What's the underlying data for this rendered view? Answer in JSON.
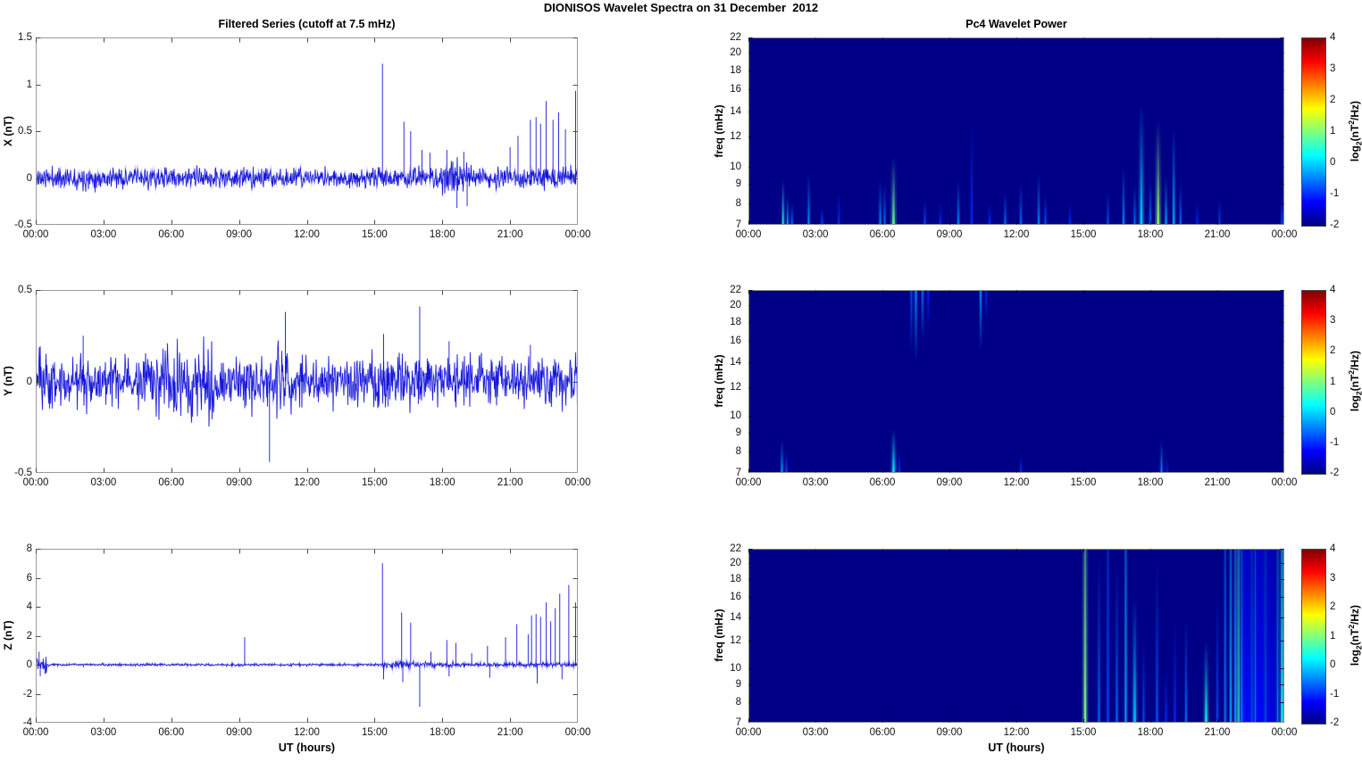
{
  "page": {
    "title": "DIONISOS Wavelet Spectra on 31 December  2012"
  },
  "chart_data": {
    "type": "multi-panel figure: 3 line time-series (left) + 3 wavelet power heatmap spectrograms with colorbars (right)",
    "date_shown": "31 December 2012",
    "x": {
      "label": "UT (hours)",
      "hours": [
        0,
        3,
        6,
        9,
        12,
        15,
        18,
        21,
        24
      ],
      "tick_labels": [
        "00:00",
        "03:00",
        "06:00",
        "09:00",
        "12:00",
        "15:00",
        "18:00",
        "21:00",
        "00:00"
      ],
      "xlim_hours": [
        0,
        24
      ]
    },
    "filtered": {
      "title": "Filtered Series (cutoff at 7.5 mHz)",
      "line_color": "#0b0bd8",
      "panels": [
        {
          "component": "X",
          "ylabel": "X (nT)",
          "ylim": [
            -0.5,
            1.5
          ],
          "yticks": [
            1.5,
            1,
            0.5,
            0,
            -0.5
          ],
          "ytick_labels": [
            "1.5",
            "1",
            "0.5",
            "0",
            "-0.5"
          ],
          "seed": 11,
          "noise_std": 0.052,
          "noise_bursts": [
            [
              17.9,
              19.5,
              0.075
            ]
          ],
          "spikes": [
            [
              15.35,
              1.22
            ],
            [
              16.3,
              0.6
            ],
            [
              16.6,
              0.5
            ],
            [
              17.1,
              0.3
            ],
            [
              17.45,
              0.27
            ],
            [
              18.2,
              0.3
            ],
            [
              18.65,
              -0.32
            ],
            [
              18.95,
              0.28
            ],
            [
              19.1,
              -0.3
            ],
            [
              21.0,
              0.33
            ],
            [
              21.35,
              0.45
            ],
            [
              21.9,
              0.62
            ],
            [
              22.15,
              0.65
            ],
            [
              22.35,
              0.58
            ],
            [
              22.6,
              0.82
            ],
            [
              22.9,
              0.62
            ],
            [
              23.15,
              0.7
            ],
            [
              23.45,
              0.52
            ],
            [
              23.9,
              0.93
            ]
          ]
        },
        {
          "component": "Y",
          "ylabel": "Y (nT)",
          "ylim": [
            -0.5,
            0.5
          ],
          "yticks": [
            0.5,
            0,
            -0.5
          ],
          "ytick_labels": [
            "0.5",
            "0",
            "-0.5"
          ],
          "seed": 23,
          "noise_std": 0.065,
          "noise_bursts": [
            [
              0.1,
              0.9,
              0.085
            ],
            [
              5.3,
              7.9,
              0.1
            ],
            [
              10.6,
              11.5,
              0.09
            ]
          ],
          "spikes": [
            [
              2.1,
              0.25
            ],
            [
              10.35,
              -0.44
            ],
            [
              11.05,
              0.38
            ],
            [
              15.4,
              0.26
            ],
            [
              17.0,
              0.41
            ],
            [
              18.3,
              0.22
            ],
            [
              21.9,
              0.2
            ]
          ]
        },
        {
          "component": "Z",
          "ylabel": "Z (nT)",
          "ylim": [
            -4,
            8
          ],
          "yticks": [
            8,
            6,
            4,
            2,
            0,
            -2,
            -4
          ],
          "ytick_labels": [
            "8",
            "6",
            "4",
            "2",
            "0",
            "-2",
            "-4"
          ],
          "seed": 37,
          "noise_std": 0.04,
          "noise_bursts": [
            [
              0,
              0.5,
              0.28
            ],
            [
              15.3,
              18.6,
              0.1
            ],
            [
              18.6,
              21,
              0.06
            ],
            [
              21,
              24,
              0.08
            ]
          ],
          "spikes": [
            [
              0.15,
              0.9
            ],
            [
              0.2,
              -0.8
            ],
            [
              9.25,
              1.9
            ],
            [
              15.35,
              7.0
            ],
            [
              15.4,
              -1.0
            ],
            [
              16.2,
              3.6
            ],
            [
              16.25,
              -1.2
            ],
            [
              16.6,
              2.9
            ],
            [
              17.0,
              -2.9
            ],
            [
              17.5,
              0.9
            ],
            [
              18.2,
              1.7
            ],
            [
              18.3,
              -0.8
            ],
            [
              18.6,
              1.5
            ],
            [
              19.3,
              0.8
            ],
            [
              20.0,
              1.3
            ],
            [
              20.1,
              -0.9
            ],
            [
              20.8,
              1.9
            ],
            [
              21.3,
              2.8
            ],
            [
              21.8,
              2.1
            ],
            [
              21.95,
              3.4
            ],
            [
              22.15,
              3.5
            ],
            [
              22.2,
              -1.3
            ],
            [
              22.35,
              3.3
            ],
            [
              22.6,
              4.3
            ],
            [
              22.8,
              3.0
            ],
            [
              23.0,
              3.9
            ],
            [
              23.2,
              4.9
            ],
            [
              23.3,
              -1.0
            ],
            [
              23.6,
              5.5
            ],
            [
              23.9,
              4.3
            ]
          ]
        }
      ]
    },
    "wavelet": {
      "title": "Pc4 Wavelet Power",
      "ylabel": "freq (mHz)",
      "flim_mHz": [
        7,
        22
      ],
      "yticks": [
        22,
        20,
        18,
        16,
        14,
        12,
        10,
        9,
        8,
        7
      ],
      "scale": "log",
      "background": "#000087",
      "colorbar": {
        "lim": [
          -2,
          4
        ],
        "ticks": [
          4,
          3,
          2,
          1,
          0,
          -1,
          -2
        ],
        "colormap": "jet",
        "label_parts": {
          "p1": "log",
          "sub": "2",
          "p2": "(nT",
          "sup": "2",
          "p3": "/Hz)"
        }
      },
      "panels": [
        {
          "component": "X",
          "streaks": [
            [
              1.55,
              9.2,
              0.42
            ],
            [
              1.75,
              8.3,
              0.3
            ],
            [
              1.95,
              8.0,
              0.24
            ],
            [
              2.7,
              9.6,
              0.28
            ],
            [
              3.3,
              7.8,
              0.2
            ],
            [
              4.05,
              8.6,
              0.17
            ],
            [
              5.9,
              9.2,
              0.27
            ],
            [
              6.1,
              9.0,
              0.24
            ],
            [
              6.5,
              10.6,
              0.48,
              "b",
              2.6
            ],
            [
              7.9,
              8.2,
              0.2
            ],
            [
              8.6,
              8.0,
              0.17
            ],
            [
              9.4,
              9.2,
              0.27
            ],
            [
              10.0,
              13.0,
              0.17
            ],
            [
              10.8,
              8.0,
              0.17
            ],
            [
              11.5,
              8.6,
              0.24
            ],
            [
              12.2,
              9.0,
              0.24
            ],
            [
              13.0,
              9.6,
              0.27
            ],
            [
              13.3,
              8.4,
              0.21
            ],
            [
              14.4,
              8.0,
              0.17
            ],
            [
              16.1,
              8.6,
              0.21
            ],
            [
              16.8,
              10.0,
              0.27
            ],
            [
              17.3,
              9.0,
              0.24
            ],
            [
              17.6,
              14.6,
              0.34,
              "b",
              2.6
            ],
            [
              18.0,
              9.2,
              0.24
            ],
            [
              18.35,
              13.2,
              0.52,
              "b",
              2.8
            ],
            [
              18.7,
              9.4,
              0.3
            ],
            [
              19.05,
              12.6,
              0.32
            ],
            [
              19.35,
              9.0,
              0.24
            ],
            [
              20.1,
              8.0,
              0.17
            ],
            [
              21.1,
              8.2,
              0.19
            ],
            [
              23.9,
              8.4,
              0.21
            ]
          ]
        },
        {
          "component": "Y",
          "streaks": [
            [
              1.5,
              8.6,
              0.3
            ],
            [
              1.7,
              8.0,
              0.2
            ],
            [
              6.5,
              9.2,
              0.38,
              "b",
              2.4
            ],
            [
              6.75,
              8.0,
              0.18
            ],
            [
              12.2,
              7.8,
              0.17
            ],
            [
              18.5,
              8.6,
              0.27
            ],
            [
              18.75,
              7.8,
              0.15
            ],
            [
              7.3,
              15,
              0.2,
              "t"
            ],
            [
              7.5,
              14,
              0.28,
              "t"
            ],
            [
              7.8,
              16,
              0.24,
              "t"
            ],
            [
              8.05,
              17,
              0.16,
              "t"
            ],
            [
              10.4,
              15,
              0.28,
              "t"
            ],
            [
              10.65,
              18,
              0.16,
              "t"
            ]
          ]
        },
        {
          "component": "Z",
          "streaks": [
            [
              15.08,
              22,
              0.5,
              "b",
              2.6
            ],
            [
              15.7,
              21,
              0.24
            ],
            [
              16.1,
              22,
              0.2
            ],
            [
              16.5,
              20,
              0.24
            ],
            [
              16.9,
              22,
              0.3
            ],
            [
              17.3,
              16,
              0.34,
              "b",
              2.4
            ],
            [
              17.7,
              12,
              0.2
            ],
            [
              18.3,
              20,
              0.22
            ],
            [
              18.7,
              10,
              0.17
            ],
            [
              19.1,
              14,
              0.17
            ],
            [
              19.6,
              14,
              0.24
            ],
            [
              20.5,
              12,
              0.4,
              "b",
              2.4
            ],
            [
              21.0,
              16,
              0.2
            ],
            [
              21.35,
              22,
              0.24
            ],
            [
              21.6,
              22,
              0.3
            ],
            [
              21.8,
              22,
              0.27
            ],
            [
              21.95,
              22,
              0.45,
              "b",
              2.6
            ],
            [
              22.1,
              22,
              0.3
            ],
            [
              22.25,
              22,
              0.4,
              "b",
              2.4
            ],
            [
              22.4,
              22,
              0.3
            ],
            [
              22.55,
              22,
              0.27
            ],
            [
              22.7,
              22,
              0.34
            ],
            [
              22.85,
              22,
              0.3
            ],
            [
              23.0,
              22,
              0.32
            ],
            [
              23.15,
              22,
              0.27
            ],
            [
              23.3,
              22,
              0.34
            ],
            [
              23.5,
              18,
              0.24
            ],
            [
              23.7,
              22,
              0.3
            ],
            [
              23.9,
              22,
              0.4,
              "b",
              2.4
            ],
            [
              22.3,
              22,
              0.12,
              "b",
              8
            ],
            [
              22.9,
              22,
              0.12,
              "b",
              8
            ],
            [
              23.4,
              22,
              0.1,
              "b",
              8
            ]
          ]
        }
      ]
    }
  }
}
